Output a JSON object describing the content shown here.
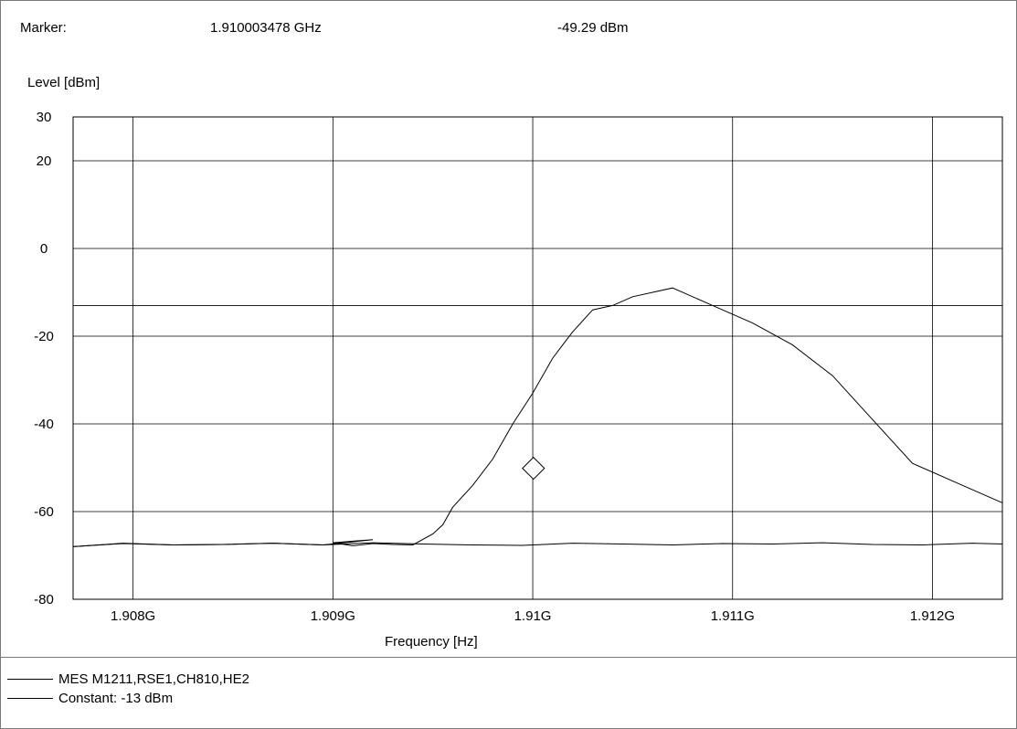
{
  "marker": {
    "label": "Marker:",
    "frequency": "1.910003478 GHz",
    "level": "-49.29 dBm",
    "x": 1.910003478,
    "y": -49.29
  },
  "legend": [
    {
      "label": "MES  M1211,RSE1,CH810,HE2"
    },
    {
      "label": "Constant: -13 dBm"
    }
  ],
  "chart_data": {
    "type": "line",
    "ylabel": "Level [dBm]",
    "xlabel": "Frequency [Hz]",
    "xlim": [
      1.9077,
      1.91235
    ],
    "ylim": [
      -80,
      30
    ],
    "grid": true,
    "x_ticks": [
      {
        "value": 1.908,
        "label": "1.908G"
      },
      {
        "value": 1.909,
        "label": "1.909G"
      },
      {
        "value": 1.91,
        "label": "1.91G"
      },
      {
        "value": 1.911,
        "label": "1.911G"
      },
      {
        "value": 1.912,
        "label": "1.912G"
      }
    ],
    "y_ticks": [
      {
        "value": 30,
        "label": "30"
      },
      {
        "value": 20,
        "label": "20"
      },
      {
        "value": 0,
        "label": "0"
      },
      {
        "value": -20,
        "label": "-20"
      },
      {
        "value": -40,
        "label": "-40"
      },
      {
        "value": -60,
        "label": "-60"
      },
      {
        "value": -80,
        "label": "-80"
      }
    ],
    "constant_line": {
      "value": -13
    },
    "series": [
      {
        "x": [
          1.9077,
          1.90795,
          1.9082,
          1.90845,
          1.9087,
          1.90895,
          1.9092,
          1.90945,
          1.9097,
          1.90995,
          1.9102,
          1.91045,
          1.9107,
          1.91095,
          1.9112,
          1.91145,
          1.9117,
          1.91195,
          1.9122,
          1.91235
        ],
        "y": [
          -68,
          -67.3,
          -67.6,
          -67.5,
          -67.2,
          -67.6,
          -67.1,
          -67.4,
          -67.6,
          -67.7,
          -67.2,
          -67.4,
          -67.6,
          -67.3,
          -67.4,
          -67.1,
          -67.5,
          -67.6,
          -67.2,
          -67.4
        ]
      },
      {
        "x": [
          1.9077,
          1.90795,
          1.9082,
          1.90845,
          1.9087,
          1.90895,
          1.9092,
          1.909,
          1.9091,
          1.9092,
          1.9093,
          1.9094,
          1.9095,
          1.90955,
          1.9096,
          1.9097,
          1.9098,
          1.9099,
          1.91,
          1.9101,
          1.91015,
          1.9102,
          1.9103,
          1.9104,
          1.9105,
          1.9107,
          1.9109,
          1.9111,
          1.9113,
          1.9115,
          1.9117,
          1.9119,
          1.9121,
          1.91235
        ],
        "y": [
          -68,
          -67.2,
          -67.6,
          -67.5,
          -67.2,
          -67.6,
          -66.4,
          -67.1,
          -67.8,
          -67.3,
          -67.5,
          -67.6,
          -65.1,
          -63,
          -59,
          -54,
          -48,
          -40,
          -33,
          -25,
          -22,
          -19,
          -14,
          -13,
          -11,
          -9,
          -13,
          -17,
          -22,
          -29,
          -39,
          -49,
          -53,
          -58
        ]
      }
    ]
  }
}
